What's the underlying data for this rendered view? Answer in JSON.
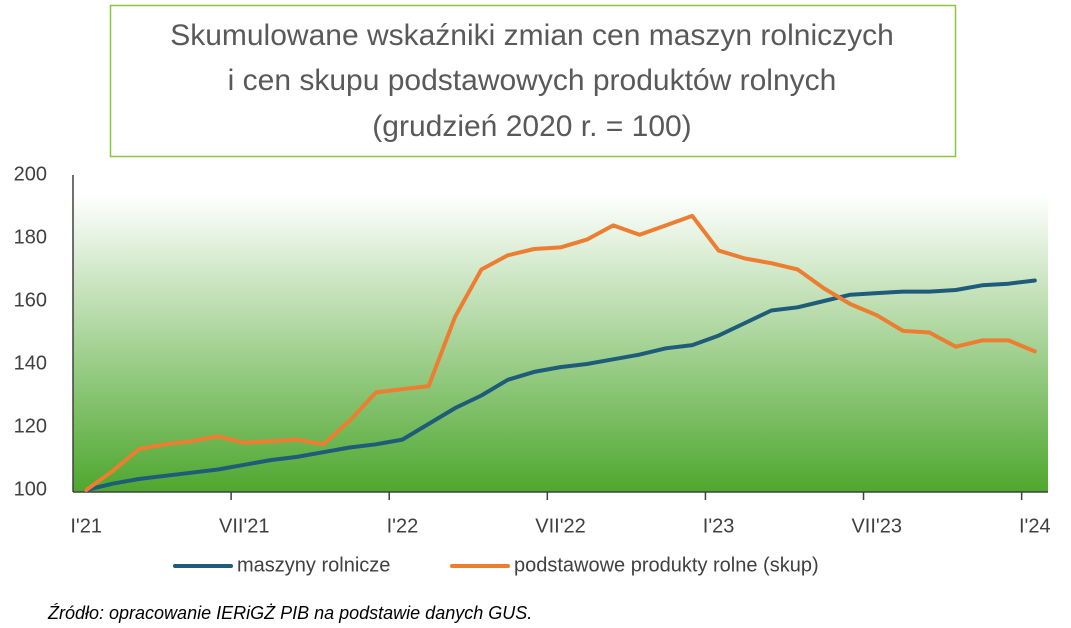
{
  "chart_data": {
    "type": "line",
    "title": [
      "Skumulowane wskaźniki zmian cen maszyn rolniczych",
      "i cen skupu podstawowych produktów rolnych",
      "(grudzień 2020 r. = 100)"
    ],
    "categories": [
      "I'21",
      null,
      null,
      null,
      null,
      null,
      "VII'21",
      null,
      null,
      null,
      null,
      null,
      "I'22",
      null,
      null,
      null,
      null,
      null,
      "VII'22",
      null,
      null,
      null,
      null,
      null,
      "I'23",
      null,
      null,
      null,
      null,
      null,
      "VII'23",
      null,
      null,
      null,
      null,
      null,
      "I'24"
    ],
    "series": [
      {
        "name": "maszyny rolnicze",
        "color": "#1f5c7a",
        "values": [
          100,
          102,
          103.5,
          104.5,
          105.5,
          106.5,
          108,
          109.5,
          110.5,
          112,
          113.5,
          114.5,
          116,
          121,
          126,
          130,
          135,
          137.5,
          139,
          140,
          141.5,
          143,
          145,
          146,
          149,
          153,
          157,
          158,
          160,
          162,
          162.5,
          163,
          163,
          163.5,
          165,
          165.5,
          166.5
        ]
      },
      {
        "name": "podstawowe produkty rolne (skup)",
        "color": "#ed7d31",
        "values": [
          100,
          106,
          113,
          114.5,
          115.5,
          117,
          115,
          115.5,
          116,
          114.5,
          122,
          131,
          132,
          133,
          155,
          170,
          174.5,
          176.5,
          177,
          179.5,
          184,
          181,
          184,
          187,
          176,
          173.5,
          172,
          170,
          164,
          159,
          155.5,
          150.5,
          150,
          145.5,
          147.5,
          147.5,
          144
        ]
      }
    ],
    "ylim": [
      100,
      200
    ],
    "yticks": [
      100,
      120,
      140,
      160,
      180,
      200
    ],
    "grid": false,
    "legend": "bottom",
    "source": "Źródło: opracowanie IERiGŻ PIB na podstawie danych GUS."
  }
}
